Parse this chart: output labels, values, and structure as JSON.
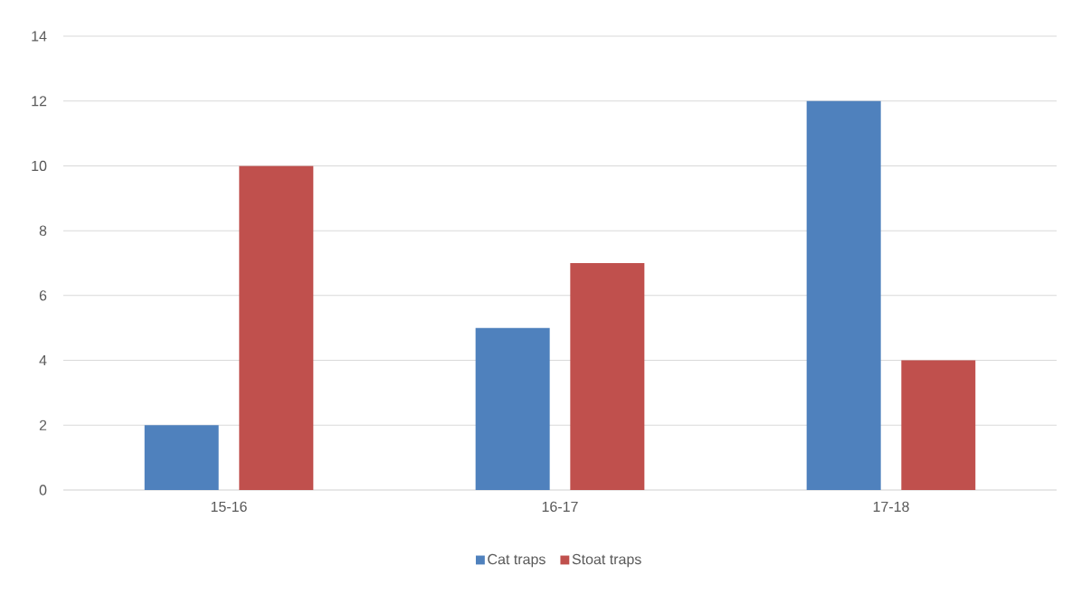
{
  "chart_data": {
    "type": "bar",
    "categories": [
      "15-16",
      "16-17",
      "17-18"
    ],
    "series": [
      {
        "name": "Cat traps",
        "color": "#4f81bd",
        "values": [
          2,
          5,
          12
        ]
      },
      {
        "name": "Stoat traps",
        "color": "#c0504d",
        "values": [
          10,
          7,
          4
        ]
      }
    ],
    "ylim": [
      0,
      14
    ],
    "yticks": [
      0,
      2,
      4,
      6,
      8,
      10,
      12,
      14
    ],
    "grid": "y",
    "legend": "bottom"
  }
}
